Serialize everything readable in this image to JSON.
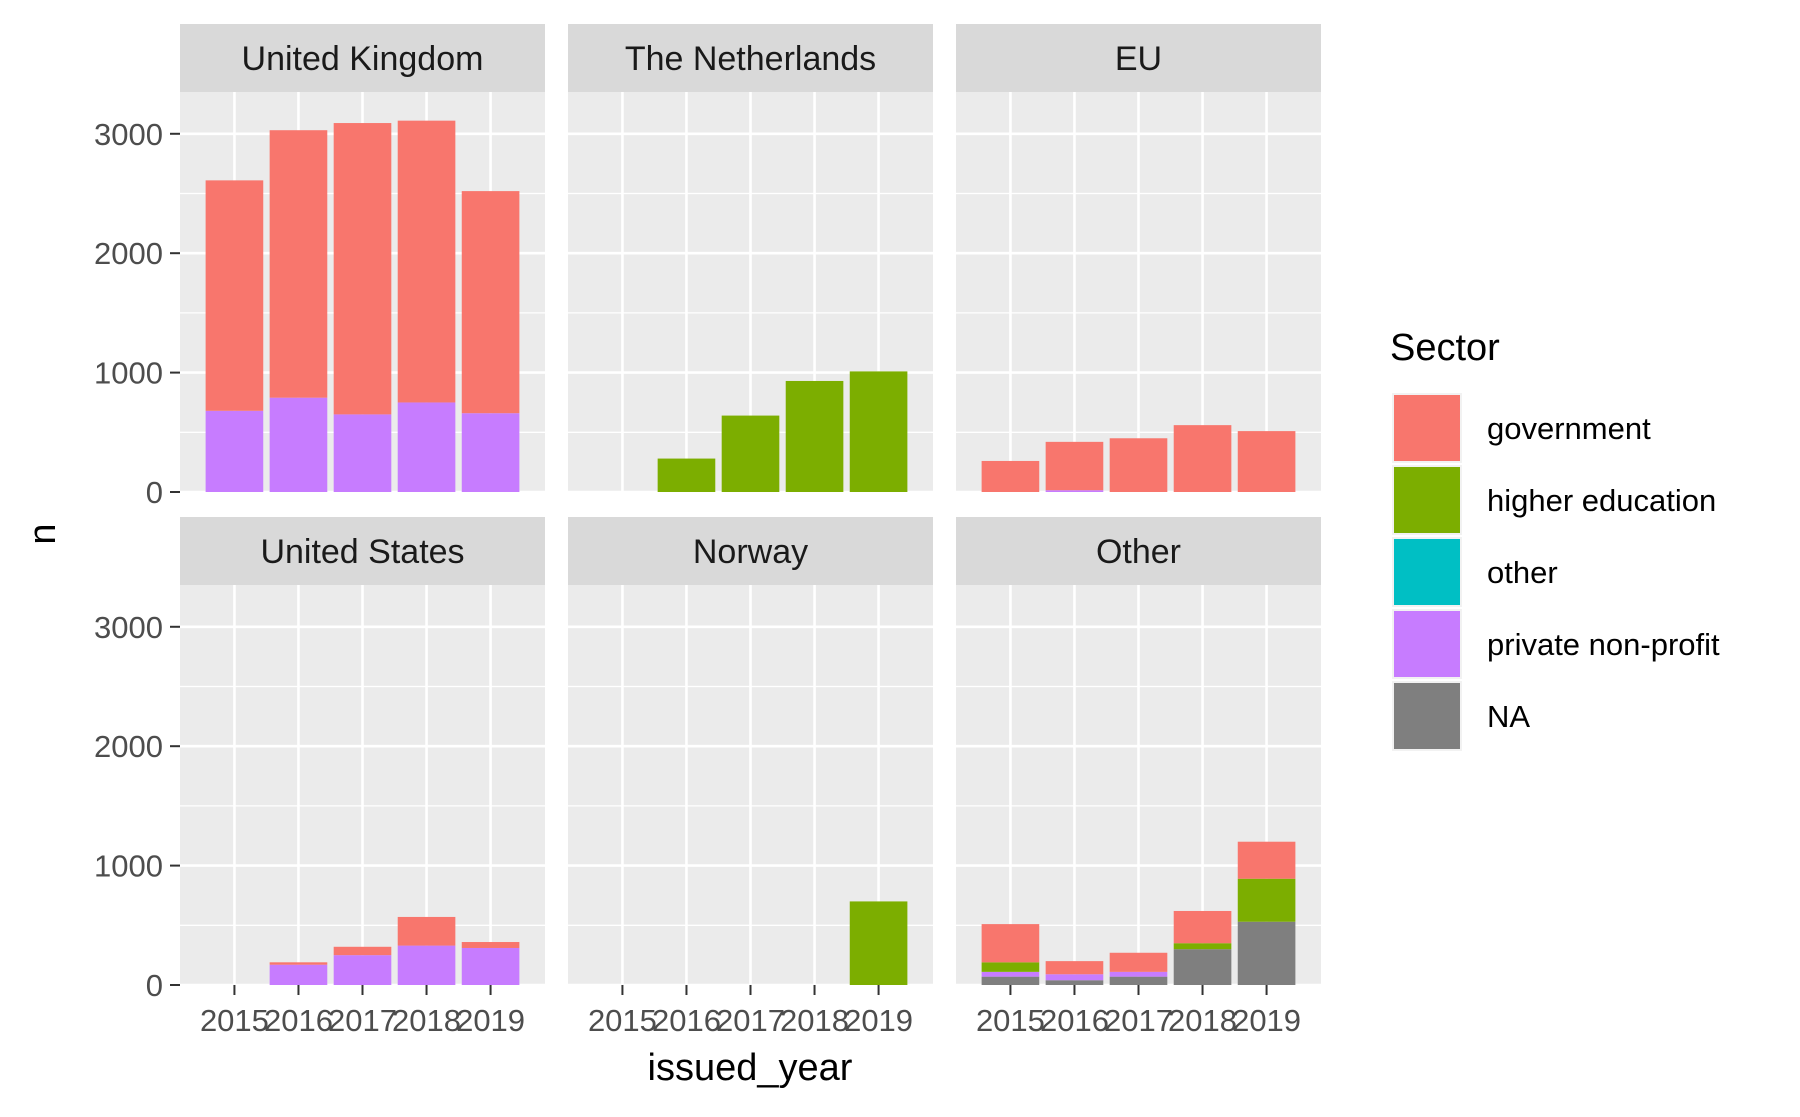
{
  "chart_data": {
    "type": "bar",
    "stacked": true,
    "faceted": true,
    "xlabel": "issued_year",
    "ylabel": "n",
    "ylim": [
      0,
      3350
    ],
    "yticks": [
      0,
      1000,
      2000,
      3000
    ],
    "x": [
      "2015",
      "2016",
      "2017",
      "2018",
      "2019"
    ],
    "grid": true,
    "legend": {
      "title": "Sector",
      "position": "right",
      "entries": [
        "government",
        "higher education",
        "other",
        "private non-profit",
        "NA"
      ]
    },
    "colors": {
      "government": "#F8766D",
      "higher education": "#7CAE00",
      "other": "#00BFC4",
      "private non-profit": "#C77CFF",
      "NA": "#7F7F7F"
    },
    "panels": [
      {
        "title": "United Kingdom",
        "series": [
          {
            "name": "NA",
            "values": [
              0,
              0,
              0,
              0,
              0
            ]
          },
          {
            "name": "private non-profit",
            "values": [
              680,
              790,
              650,
              750,
              660
            ]
          },
          {
            "name": "other",
            "values": [
              0,
              0,
              0,
              0,
              0
            ]
          },
          {
            "name": "higher education",
            "values": [
              0,
              0,
              0,
              0,
              0
            ]
          },
          {
            "name": "government",
            "values": [
              1930,
              2240,
              2440,
              2360,
              1860
            ]
          }
        ]
      },
      {
        "title": "The Netherlands",
        "series": [
          {
            "name": "NA",
            "values": [
              0,
              0,
              0,
              0,
              0
            ]
          },
          {
            "name": "private non-profit",
            "values": [
              0,
              0,
              0,
              0,
              0
            ]
          },
          {
            "name": "other",
            "values": [
              0,
              0,
              0,
              0,
              0
            ]
          },
          {
            "name": "higher education",
            "values": [
              0,
              280,
              640,
              930,
              1010
            ]
          },
          {
            "name": "government",
            "values": [
              0,
              0,
              0,
              0,
              0
            ]
          }
        ]
      },
      {
        "title": "EU",
        "series": [
          {
            "name": "NA",
            "values": [
              0,
              0,
              0,
              0,
              0
            ]
          },
          {
            "name": "private non-profit",
            "values": [
              0,
              15,
              0,
              0,
              0
            ]
          },
          {
            "name": "other",
            "values": [
              0,
              0,
              0,
              0,
              0
            ]
          },
          {
            "name": "higher education",
            "values": [
              0,
              0,
              0,
              0,
              0
            ]
          },
          {
            "name": "government",
            "values": [
              260,
              405,
              450,
              560,
              510
            ]
          }
        ]
      },
      {
        "title": "United States",
        "series": [
          {
            "name": "NA",
            "values": [
              0,
              0,
              0,
              0,
              0
            ]
          },
          {
            "name": "private non-profit",
            "values": [
              0,
              170,
              250,
              330,
              310
            ]
          },
          {
            "name": "other",
            "values": [
              0,
              0,
              0,
              0,
              0
            ]
          },
          {
            "name": "higher education",
            "values": [
              0,
              0,
              0,
              0,
              0
            ]
          },
          {
            "name": "government",
            "values": [
              0,
              20,
              70,
              240,
              50
            ]
          }
        ]
      },
      {
        "title": "Norway",
        "series": [
          {
            "name": "NA",
            "values": [
              0,
              0,
              0,
              0,
              0
            ]
          },
          {
            "name": "private non-profit",
            "values": [
              0,
              0,
              0,
              0,
              0
            ]
          },
          {
            "name": "other",
            "values": [
              0,
              0,
              0,
              0,
              0
            ]
          },
          {
            "name": "higher education",
            "values": [
              0,
              0,
              0,
              0,
              700
            ]
          },
          {
            "name": "government",
            "values": [
              0,
              0,
              0,
              0,
              0
            ]
          }
        ]
      },
      {
        "title": "Other",
        "series": [
          {
            "name": "NA",
            "values": [
              70,
              40,
              70,
              300,
              530
            ]
          },
          {
            "name": "private non-profit",
            "values": [
              40,
              50,
              40,
              0,
              0
            ]
          },
          {
            "name": "other",
            "values": [
              0,
              0,
              0,
              0,
              0
            ]
          },
          {
            "name": "higher education",
            "values": [
              80,
              0,
              0,
              50,
              360
            ]
          },
          {
            "name": "government",
            "values": [
              320,
              110,
              160,
              270,
              310
            ]
          }
        ]
      }
    ]
  }
}
